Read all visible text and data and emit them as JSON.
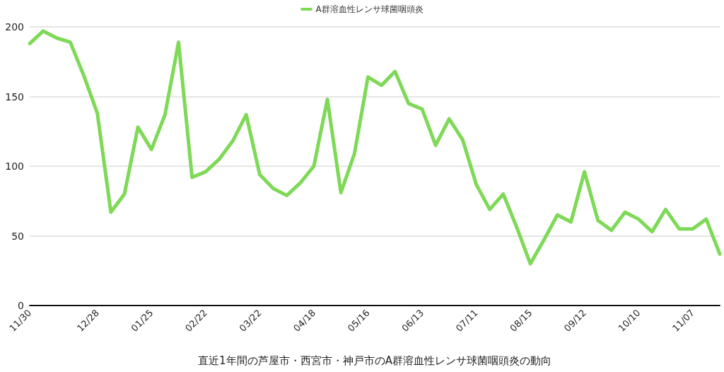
{
  "chart_data": {
    "type": "line",
    "xlabel": "直近1年間の芦屋市・西宮市・神戸市のA群溶血性レンサ球菌咽頭炎の動向",
    "categories": [
      "11/30",
      null,
      null,
      null,
      null,
      "12/28",
      null,
      null,
      null,
      "01/25",
      null,
      null,
      null,
      "02/22",
      null,
      null,
      null,
      "03/22",
      null,
      null,
      null,
      "04/18",
      null,
      null,
      null,
      "05/16",
      null,
      null,
      null,
      "06/13",
      null,
      null,
      null,
      "07/11",
      null,
      null,
      null,
      "08/15",
      null,
      null,
      null,
      "09/12",
      null,
      null,
      null,
      "10/10",
      null,
      null,
      null,
      "11/07",
      null,
      null
    ],
    "series": [
      {
        "name": "A群溶血性レンサ球菌咽頭炎",
        "color": "#7ed957",
        "values": [
          188,
          197,
          192,
          189,
          165,
          138,
          67,
          80,
          128,
          112,
          137,
          189,
          92,
          96,
          105,
          118,
          137,
          94,
          84,
          79,
          88,
          100,
          148,
          81,
          109,
          164,
          158,
          168,
          145,
          141,
          115,
          134,
          119,
          87,
          69,
          80,
          56,
          30,
          47,
          65,
          60,
          96,
          61,
          54,
          67,
          62,
          53,
          69,
          55,
          55,
          62,
          37
        ]
      }
    ],
    "ylim": [
      0,
      200
    ],
    "yticks": [
      0,
      50,
      100,
      150,
      200
    ],
    "grid": "y",
    "legend": "top",
    "marker": "none",
    "line_style": "solid"
  }
}
